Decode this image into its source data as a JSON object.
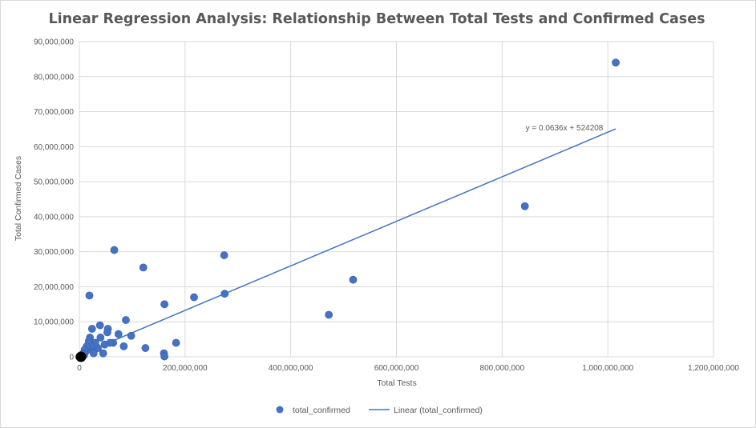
{
  "chart_data": {
    "type": "scatter",
    "title": "Linear Regression Analysis: Relationship Between Total Tests and Confirmed Cases",
    "xlabel": "Total Tests",
    "ylabel": "Total Confirmed Cases",
    "xlim": [
      0,
      1200000000
    ],
    "ylim": [
      0,
      90000000
    ],
    "x_ticks": [
      "0",
      "200,000,000",
      "400,000,000",
      "600,000,000",
      "800,000,000",
      "1,000,000,000",
      "1,200,000,000"
    ],
    "y_ticks": [
      "0",
      "10,000,000",
      "20,000,000",
      "30,000,000",
      "40,000,000",
      "50,000,000",
      "60,000,000",
      "70,000,000",
      "80,000,000",
      "90,000,000"
    ],
    "grid": true,
    "legend_position": "bottom",
    "series": [
      {
        "name": "total_confirmed",
        "kind": "scatter",
        "color": "#4472c4",
        "points": [
          [
            1015000000,
            84000000
          ],
          [
            843000000,
            43000000
          ],
          [
            518000000,
            22000000
          ],
          [
            472000000,
            12000000
          ],
          [
            274000000,
            29000000
          ],
          [
            275000000,
            18000000
          ],
          [
            217000000,
            17000000
          ],
          [
            183000000,
            4000000
          ],
          [
            161000000,
            15000000
          ],
          [
            160000000,
            1000000
          ],
          [
            161000000,
            100000
          ],
          [
            125000000,
            2500000
          ],
          [
            121000000,
            25500000
          ],
          [
            98000000,
            6000000
          ],
          [
            88000000,
            10500000
          ],
          [
            84000000,
            3000000
          ],
          [
            74000000,
            6500000
          ],
          [
            66000000,
            30500000
          ],
          [
            64000000,
            4000000
          ],
          [
            58000000,
            4000000
          ],
          [
            54000000,
            8000000
          ],
          [
            53000000,
            7000000
          ],
          [
            48000000,
            3500000
          ],
          [
            45000000,
            1000000
          ],
          [
            40000000,
            5500000
          ],
          [
            39000000,
            9000000
          ],
          [
            35000000,
            2500000
          ],
          [
            30000000,
            4000000
          ],
          [
            27000000,
            1000000
          ],
          [
            24000000,
            8000000
          ],
          [
            22000000,
            3000000
          ],
          [
            20000000,
            5500000
          ],
          [
            19000000,
            17500000
          ],
          [
            18000000,
            4500000
          ],
          [
            15000000,
            2000000
          ],
          [
            14000000,
            3000000
          ],
          [
            12000000,
            1500000
          ],
          [
            10000000,
            2000000
          ],
          [
            9000000,
            500000
          ],
          [
            8000000,
            1000000
          ],
          [
            7000000,
            300000
          ],
          [
            6000000,
            700000
          ],
          [
            5000000,
            200000
          ],
          [
            4000000,
            100000
          ],
          [
            3000000,
            400000
          ],
          [
            2500000,
            50000
          ],
          [
            2000000,
            100000
          ],
          [
            1500000,
            30000
          ],
          [
            1000000,
            20000
          ],
          [
            800000,
            80000
          ],
          [
            600000,
            10000
          ],
          [
            400000,
            5000
          ],
          [
            200000,
            2000
          ],
          [
            100000,
            1000
          ]
        ]
      },
      {
        "name": "Linear (total_confirmed)",
        "kind": "trendline",
        "color": "#4472c4",
        "slope": 0.0636,
        "intercept": 524208,
        "x_range": [
          0,
          1015000000
        ]
      }
    ],
    "annotations": [
      {
        "text": "y = 0.0636x + 524208"
      }
    ]
  }
}
